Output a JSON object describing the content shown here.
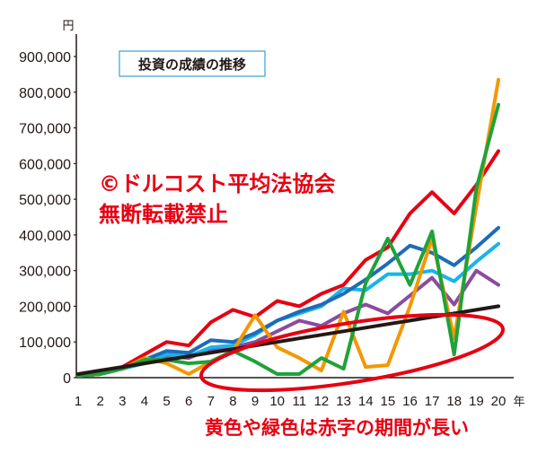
{
  "chart_data": {
    "type": "line",
    "title": "投資の成績の推移",
    "xlabel": "年",
    "ylabel": "円",
    "x": [
      1,
      2,
      3,
      4,
      5,
      6,
      7,
      8,
      9,
      10,
      11,
      12,
      13,
      14,
      15,
      16,
      17,
      18,
      19,
      20
    ],
    "ylim": [
      0,
      900000
    ],
    "yticks": [
      {
        "value": 0,
        "label": "0"
      },
      {
        "value": 100000,
        "label": "100,000"
      },
      {
        "value": 200000,
        "label": "200,000"
      },
      {
        "value": 300000,
        "label": "300,000"
      },
      {
        "value": 400000,
        "label": "400,000"
      },
      {
        "value": 500000,
        "label": "500,000"
      },
      {
        "value": 600000,
        "label": "600,000"
      },
      {
        "value": 700000,
        "label": "700,000"
      },
      {
        "value": 800000,
        "label": "800,000"
      },
      {
        "value": 900000,
        "label": "900,000"
      }
    ],
    "grid": false,
    "legend": "none",
    "series": [
      {
        "color": "#8a4c9e",
        "values": [
          5000,
          10000,
          25000,
          45000,
          60000,
          55000,
          80000,
          85000,
          100000,
          130000,
          160000,
          145000,
          180000,
          205000,
          180000,
          230000,
          280000,
          205000,
          300000,
          260000
        ]
      },
      {
        "color": "#16b5ec",
        "values": [
          5000,
          10000,
          25000,
          40000,
          65000,
          60000,
          85000,
          90000,
          120000,
          160000,
          180000,
          200000,
          250000,
          245000,
          290000,
          290000,
          300000,
          270000,
          325000,
          375000
        ]
      },
      {
        "color": "#1e6bb8",
        "values": [
          5000,
          10000,
          30000,
          50000,
          75000,
          70000,
          105000,
          100000,
          125000,
          160000,
          185000,
          205000,
          235000,
          275000,
          320000,
          370000,
          350000,
          315000,
          365000,
          420000
        ]
      },
      {
        "color": "#e60012",
        "values": [
          5000,
          10000,
          30000,
          65000,
          100000,
          90000,
          155000,
          190000,
          170000,
          215000,
          200000,
          235000,
          260000,
          330000,
          365000,
          460000,
          520000,
          460000,
          540000,
          635000
        ]
      },
      {
        "color": "#f39800",
        "values": [
          5000,
          10000,
          25000,
          55000,
          40000,
          10000,
          45000,
          75000,
          175000,
          85000,
          55000,
          20000,
          185000,
          30000,
          35000,
          200000,
          390000,
          110000,
          480000,
          835000
        ]
      },
      {
        "color": "#1fa23a",
        "values": [
          5000,
          10000,
          25000,
          50000,
          50000,
          40000,
          45000,
          75000,
          45000,
          10000,
          10000,
          55000,
          25000,
          265000,
          390000,
          260000,
          410000,
          65000,
          530000,
          765000
        ]
      },
      {
        "color": "#231815",
        "values": [
          10000,
          20000,
          30000,
          40000,
          50000,
          60000,
          70000,
          80000,
          90000,
          100000,
          110000,
          120000,
          130000,
          140000,
          150000,
          160000,
          170000,
          180000,
          190000,
          200000
        ]
      }
    ],
    "annotations": {
      "copyright": "©ドルコスト平均法協会",
      "notice": "無断転載禁止",
      "note": "黄色や緑色は赤字の期間が長い"
    },
    "accent_color": "#e60012"
  }
}
